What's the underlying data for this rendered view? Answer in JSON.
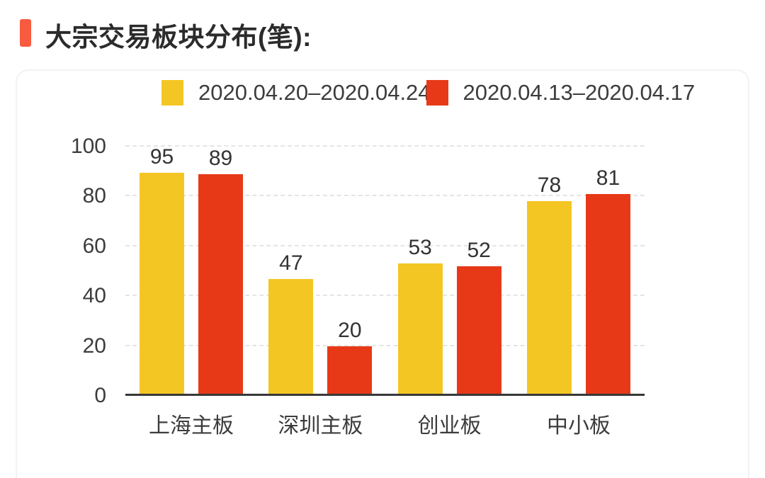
{
  "header": {
    "title": "大宗交易板块分布(笔):"
  },
  "colors": {
    "accent_bar": "#F95B40",
    "series_current_week": "#F4C624",
    "series_previous_week": "#E73918",
    "axis_line": "#383838",
    "gridline": "#E5E5E5",
    "title_text": "#2B2B2B",
    "label_text": "#3C3C3C"
  },
  "chart_data": {
    "type": "bar",
    "title": "大宗交易板块分布(笔):",
    "categories": [
      "上海主板",
      "深圳主板",
      "创业板",
      "中小板"
    ],
    "series": [
      {
        "name": "2020.04.20–2020.04.24",
        "color": "#F4C624",
        "values": [
          95,
          47,
          53,
          78
        ]
      },
      {
        "name": "2020.04.13–2020.04.17",
        "color": "#E73918",
        "values": [
          89,
          20,
          52,
          81
        ]
      }
    ],
    "xlabel": "",
    "ylabel": "",
    "ylim": [
      0,
      100
    ],
    "y_ticks": [
      0,
      20,
      40,
      60,
      80,
      100
    ],
    "grid": "horizontal-dashed",
    "legend_position": "top",
    "bar_value_labels": true
  }
}
